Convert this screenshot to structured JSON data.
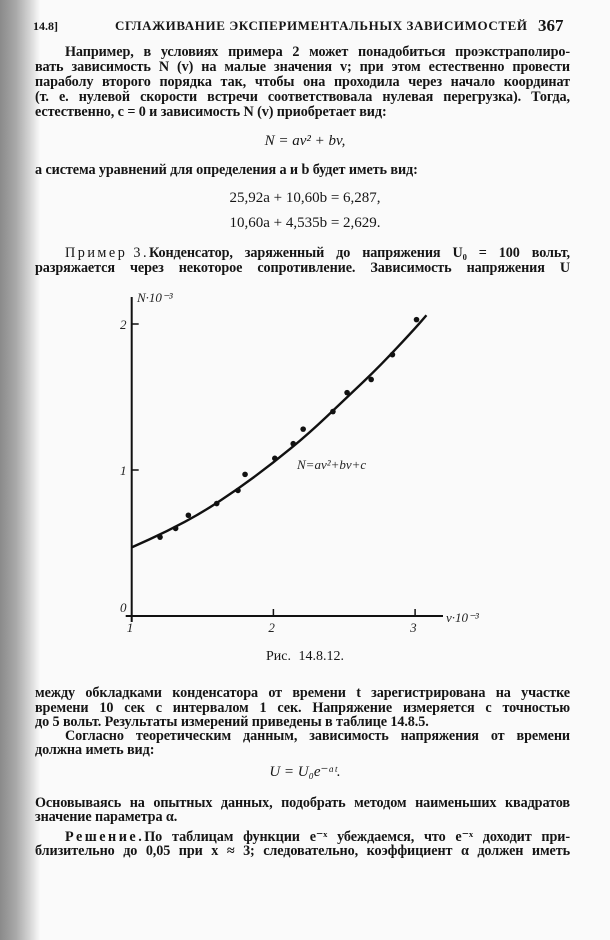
{
  "header": {
    "section": "14.8]",
    "title": "СГЛАЖИВАНИЕ ЭКСПЕРИМЕНТАЛЬНЫХ ЗАВИСИМОСТЕЙ",
    "page_number": "367"
  },
  "top_text": {
    "p1": [
      "Например, в условиях примера 2 может понадобиться проэкстраполиро-",
      "вать зависимость N (v) на малые значения v; при этом естественно провести",
      "параболу второго порядка так, чтобы она проходила через начало координат",
      "(т. е. нулевой скорости встречи соответствовала нулевая перегрузка). Тогда,",
      "естественно, c = 0 и зависимость N (v) приобретает вид:"
    ],
    "eq1": "N = av² + bv,",
    "p2": "а система уравнений для определения a и b будет иметь вид:",
    "eq2": "25,92a + 10,60b = 6,287,",
    "eq3": "10,60a + 4,535b = 2,629.",
    "example_label": "Пример 3.",
    "p3": [
      " Конденсатор, заряженный до напряжения U₀ = 100 вольт,",
      "разряжается через некоторое сопротивление. Зависимость напряжения U"
    ]
  },
  "figure": {
    "caption": "Рис. 14.8.12."
  },
  "chart_data": {
    "type": "scatter",
    "xlabel": "v·10⁻³",
    "ylabel": "N·10⁻³",
    "xlim": [
      1,
      3.2
    ],
    "ylim": [
      0,
      2.1
    ],
    "xticks": [
      "1",
      "2",
      "3"
    ],
    "yticks": [
      "0",
      "1",
      "2"
    ],
    "grid": false,
    "annotation": "N=av²+bv+c",
    "points": {
      "x": [
        1.2,
        1.31,
        1.4,
        1.6,
        1.75,
        1.8,
        2.01,
        2.14,
        2.21,
        2.42,
        2.52,
        2.69,
        2.84,
        3.01
      ],
      "y": [
        0.54,
        0.6,
        0.69,
        0.77,
        0.86,
        0.97,
        1.08,
        1.18,
        1.28,
        1.4,
        1.53,
        1.62,
        1.79,
        2.03
      ]
    },
    "curve": {
      "x": [
        1,
        1.25,
        1.5,
        1.75,
        2,
        2.25,
        2.5,
        2.75,
        3,
        3.08
      ],
      "y": [
        0.47,
        0.58,
        0.71,
        0.87,
        1.05,
        1.25,
        1.48,
        1.71,
        1.97,
        2.06
      ]
    }
  },
  "bottom_text": {
    "p4": [
      "между обкладками конденсатора от времени t зарегистрирована на участке",
      "времени 10 сек с интервалом 1 сек. Напряжение измеряется с точностью",
      "до 5 вольт. Результаты измерений приведены в таблице 14.8.5."
    ],
    "p5": [
      "Согласно теоретическим данным, зависимость напряжения от времени",
      "должна иметь вид:"
    ],
    "eq4": "U = U₀e⁻ᵅᵗ.",
    "p6": [
      "Основываясь на опытных данных, подобрать методом наименьших квадратов",
      "значение параметра α."
    ],
    "solution_label": "Решение.",
    "p7": [
      " По таблицам функции e⁻ˣ убеждаемся, что e⁻ˣ доходит при-",
      "близительно до 0,05 при x ≈ 3; следовательно, коэффициент α должен иметь"
    ]
  }
}
